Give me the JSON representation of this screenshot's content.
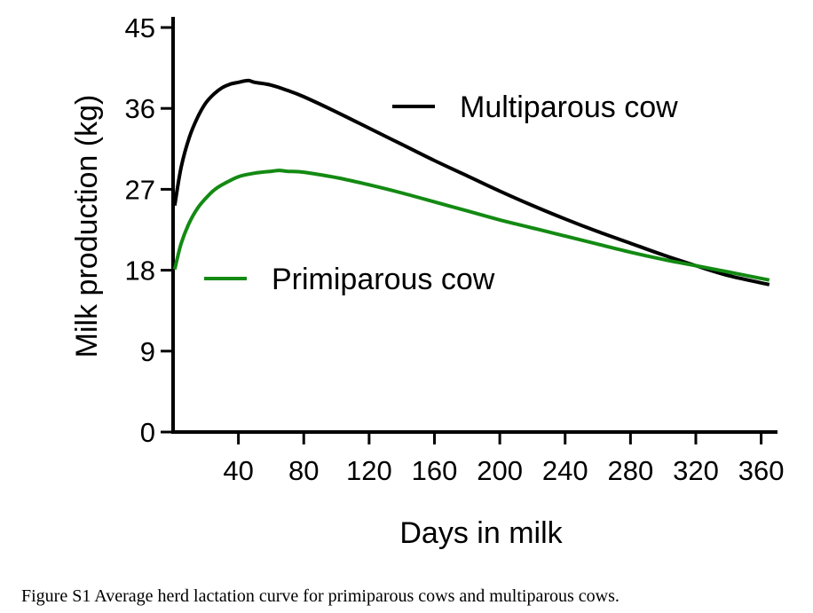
{
  "caption": "Figure S1 Average herd lactation curve for primiparous cows and multiparous cows.",
  "chart_data": {
    "type": "line",
    "xlabel": "Days in milk",
    "ylabel": "Milk production (kg)",
    "xlim": [
      0,
      370
    ],
    "ylim": [
      0,
      45
    ],
    "xticks": [
      40,
      80,
      120,
      160,
      200,
      240,
      280,
      320,
      360
    ],
    "yticks": [
      0,
      9,
      18,
      27,
      36,
      45
    ],
    "grid": false,
    "series": [
      {
        "name": "Multiparous cow",
        "color": "#000000",
        "x": [
          1,
          5,
          10,
          15,
          20,
          25,
          30,
          35,
          40,
          46,
          50,
          60,
          70,
          80,
          100,
          120,
          140,
          160,
          180,
          200,
          220,
          240,
          260,
          280,
          300,
          320,
          340,
          365
        ],
        "y": [
          25.2,
          29.5,
          32.8,
          35.0,
          36.6,
          37.6,
          38.3,
          38.7,
          38.9,
          39.1,
          38.9,
          38.6,
          38.0,
          37.3,
          35.6,
          33.8,
          32.0,
          30.2,
          28.5,
          26.8,
          25.2,
          23.7,
          22.3,
          21.0,
          19.7,
          18.5,
          17.4,
          16.4
        ]
      },
      {
        "name": "Primiparous cow",
        "color": "#138a13",
        "x": [
          1,
          5,
          10,
          15,
          20,
          25,
          30,
          40,
          50,
          60,
          65,
          70,
          80,
          100,
          120,
          140,
          160,
          180,
          200,
          220,
          240,
          260,
          280,
          300,
          320,
          340,
          365
        ],
        "y": [
          18.1,
          21.0,
          23.3,
          24.9,
          26.0,
          26.9,
          27.5,
          28.4,
          28.8,
          29.0,
          29.1,
          29.0,
          28.9,
          28.3,
          27.5,
          26.6,
          25.6,
          24.6,
          23.6,
          22.7,
          21.8,
          20.9,
          20.0,
          19.2,
          18.5,
          17.8,
          16.9
        ]
      }
    ],
    "legend": "inside plot, series labels placed next to curves"
  }
}
